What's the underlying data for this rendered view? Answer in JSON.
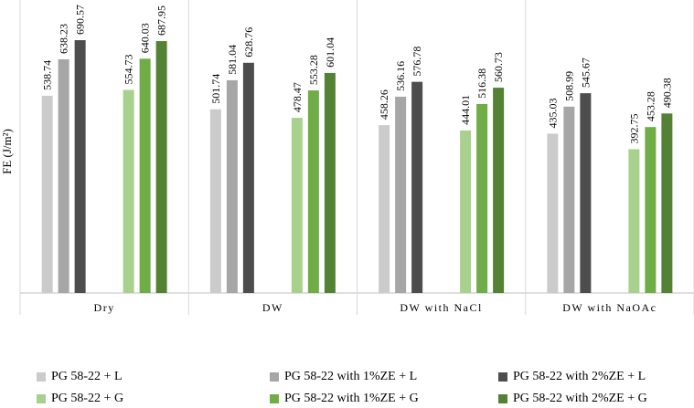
{
  "chart_data": {
    "type": "bar",
    "ylabel": "FE (J/m²)",
    "xlabel": "",
    "title": "",
    "ylim": [
      0,
      720
    ],
    "grid": false,
    "legend_position": "bottom",
    "categories": [
      "Dry",
      "DW",
      "DW with NaCl",
      "DW with NaOAc"
    ],
    "series": [
      {
        "name": "PG 58-22 + L",
        "color": "#cbcbcb",
        "values": [
          538.74,
          501.74,
          458.26,
          435.03
        ]
      },
      {
        "name": "PG 58-22 with 1%ZE + L",
        "color": "#a6a6a6",
        "values": [
          638.23,
          581.04,
          536.16,
          508.99
        ]
      },
      {
        "name": "PG 58-22 with 2%ZE + L",
        "color": "#4d4d4d",
        "values": [
          690.57,
          628.76,
          576.78,
          545.67
        ]
      },
      {
        "name": "PG 58-22 + G",
        "color": "#a9d18e",
        "values": [
          554.73,
          478.47,
          444.01,
          392.75
        ]
      },
      {
        "name": "PG 58-22 with 1%ZE + G",
        "color": "#70ad47",
        "values": [
          640.03,
          553.28,
          516.38,
          453.28
        ]
      },
      {
        "name": "PG 58-22 with 2%ZE + G",
        "color": "#548235",
        "values": [
          687.95,
          601.04,
          560.73,
          490.38
        ]
      }
    ]
  }
}
